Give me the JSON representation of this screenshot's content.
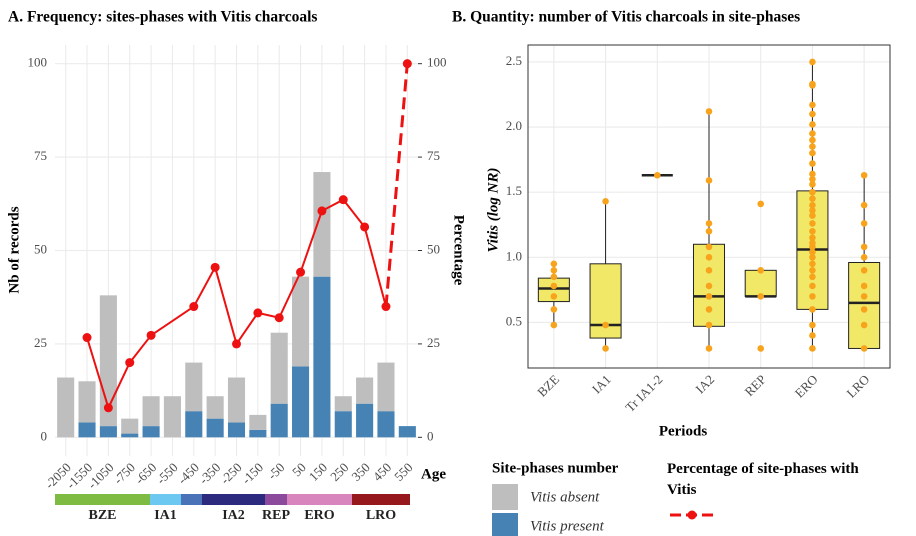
{
  "chart_data": [
    {
      "type": "bar",
      "stacked": true,
      "title": "A. Frequency: sites-phases with Vitis charcoals",
      "xlabel": "Age",
      "ylabel": "Nb of records",
      "y2label": "Percentage",
      "legend_title": "Site-phases number",
      "categories": [
        "-2050",
        "-1550",
        "-1050",
        "-750",
        "-650",
        "-550",
        "-450",
        "-350",
        "-250",
        "-150",
        "-50",
        "50",
        "150",
        "250",
        "350",
        "450",
        "550"
      ],
      "series": [
        {
          "name": "Vitis present",
          "color": "#4682b4",
          "values": [
            0,
            4,
            3,
            1,
            3,
            0,
            7,
            5,
            4,
            2,
            9,
            19,
            43,
            7,
            9,
            7,
            3
          ]
        },
        {
          "name": "Vitis absent",
          "color": "#bebebe",
          "values": [
            16,
            11,
            35,
            4,
            8,
            11,
            13,
            6,
            12,
            4,
            19,
            24,
            28,
            4,
            7,
            13,
            0
          ]
        },
        {
          "name": "Percentage of site-phases with Vitis",
          "type": "line",
          "axis": "y2",
          "color": "#ee1111",
          "values": [
            null,
            26.7,
            7.9,
            20,
            27.3,
            null,
            35,
            45.5,
            25,
            33.3,
            32,
            44.2,
            60.6,
            63.6,
            56.3,
            35,
            100
          ]
        }
      ],
      "ylim": [
        -5,
        105
      ],
      "yticks": [
        0,
        25,
        50,
        75,
        100
      ],
      "y2lim": [
        -5,
        105
      ],
      "y2ticks": [
        0,
        25,
        50,
        75,
        100
      ],
      "grid": true,
      "periods": [
        {
          "label": "BZE",
          "color": "#7dbb42"
        },
        {
          "label": "IA1",
          "color": "#6cc8f0"
        },
        {
          "label": null,
          "color": "#4a72b8"
        },
        {
          "label": "IA2",
          "color": "#2b2a7f"
        },
        {
          "label": "REP",
          "color": "#8c4a9c"
        },
        {
          "label": "ERO",
          "color": "#d884bd"
        },
        {
          "label": "LRO",
          "color": "#96181c"
        }
      ]
    },
    {
      "type": "box",
      "title": "B. Quantity: number of Vitis charcoals in site-phases",
      "xlabel": "Periods",
      "ylabel": "Vitis (log NR)",
      "categories": [
        "BZE",
        "IA1",
        "Tr IA1-2",
        "IA2",
        "REP",
        "ERO",
        "LRO"
      ],
      "box_color": "#f2e868",
      "point_color": "#f7a41c",
      "boxes": [
        {
          "min": 0.48,
          "q1": 0.66,
          "median": 0.76,
          "q3": 0.84,
          "max": 0.95
        },
        {
          "min": 0.3,
          "q1": 0.38,
          "median": 0.48,
          "q3": 0.95,
          "max": 1.43
        },
        {
          "min": 1.63,
          "q1": 1.63,
          "median": 1.63,
          "q3": 1.63,
          "max": 1.63
        },
        {
          "min": 0.3,
          "q1": 0.47,
          "median": 0.7,
          "q3": 1.1,
          "max": 2.12
        },
        {
          "min": 0.7,
          "q1": 0.7,
          "median": 0.7,
          "q3": 0.9,
          "max": 0.9
        },
        {
          "min": 0.3,
          "q1": 0.6,
          "median": 1.06,
          "q3": 1.51,
          "max": 2.5
        },
        {
          "min": 0.3,
          "q1": 0.3,
          "median": 0.65,
          "q3": 0.96,
          "max": 1.63
        }
      ],
      "points": [
        [
          0.95,
          0.9,
          0.85,
          0.78,
          0.7,
          0.6,
          0.48
        ],
        [
          1.43,
          0.48,
          0.3
        ],
        [
          1.63
        ],
        [
          2.12,
          1.59,
          1.26,
          1.2,
          1.08,
          1.0,
          0.9,
          0.78,
          0.7,
          0.6,
          0.48,
          0.3
        ],
        [
          1.41,
          0.9,
          0.7,
          0.3
        ],
        [
          2.5,
          2.33,
          2.32,
          2.17,
          2.1,
          2.02,
          1.95,
          1.9,
          1.85,
          1.8,
          1.72,
          1.64,
          1.6,
          1.56,
          1.5,
          1.45,
          1.4,
          1.36,
          1.32,
          1.26,
          1.2,
          1.15,
          1.11,
          1.08,
          1.04,
          1.0,
          0.95,
          0.9,
          0.85,
          0.78,
          0.7,
          0.6,
          0.48,
          0.4,
          0.3
        ],
        [
          1.63,
          1.4,
          1.26,
          1.08,
          1.0,
          0.9,
          0.78,
          0.7,
          0.6,
          0.48,
          0.3
        ]
      ],
      "ylim": [
        0.15,
        2.63
      ],
      "yticks": [
        0.5,
        {
          "value": 1.0,
          "label": "1.0"
        },
        1.5,
        {
          "value": 2.0,
          "label": "2.0"
        },
        2.5
      ],
      "grid": true
    }
  ]
}
